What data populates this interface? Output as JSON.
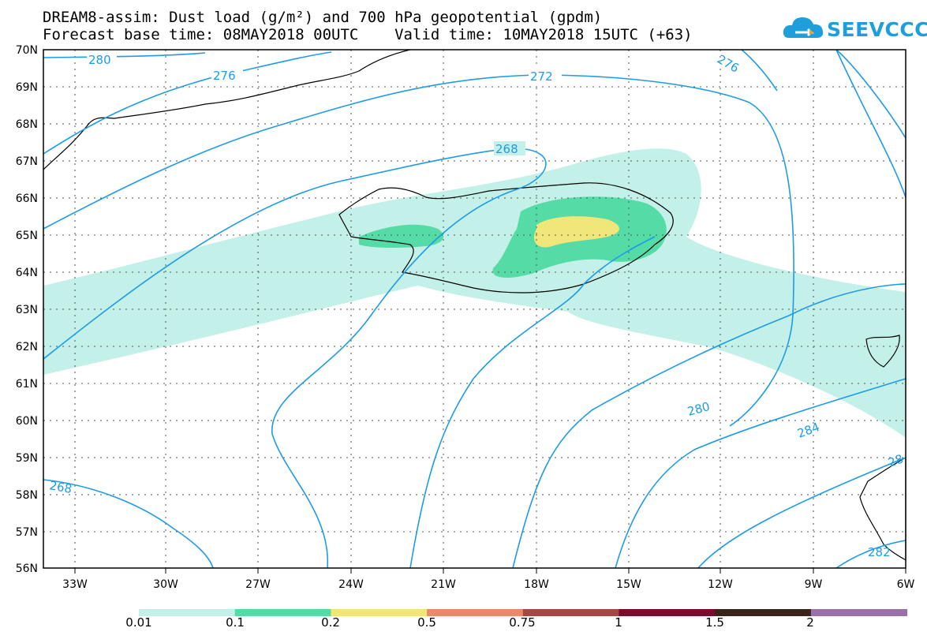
{
  "header": {
    "title_line1": "DREAM8-assim: Dust load (g/m²) and 700 hPa geopotential (gpdm)",
    "title_line2": "Forecast base time: 08MAY2018 00UTC    Valid time: 10MAY2018 15UTC (+63)"
  },
  "logo": {
    "text": "SEEVCCC",
    "icon": "cloud-icon"
  },
  "axes": {
    "lat_labels": [
      "70N",
      "69N",
      "68N",
      "67N",
      "66N",
      "65N",
      "64N",
      "63N",
      "62N",
      "61N",
      "60N",
      "59N",
      "58N",
      "57N",
      "56N"
    ],
    "lon_labels": [
      "33W",
      "30W",
      "27W",
      "24W",
      "21W",
      "18W",
      "15W",
      "12W",
      "9W",
      "6W"
    ]
  },
  "contours": {
    "labels": [
      "280",
      "276",
      "272",
      "268",
      "276",
      "268",
      "280",
      "284",
      "28",
      "282"
    ]
  },
  "colorbar": {
    "labels": [
      "0.01",
      "0.1",
      "0.2",
      "0.5",
      "0.75",
      "1",
      "1.5",
      "2"
    ],
    "colors": [
      "#c3f0e8",
      "#55dba5",
      "#f0e67a",
      "#e88a68",
      "#a04a44",
      "#7a0b2c",
      "#3a2418",
      "#9a70a8"
    ]
  },
  "colors": {
    "contour": "#1e9be8",
    "coast": "#000000",
    "dust_low": "#c3f0e8",
    "dust_mid": "#55dba5",
    "dust_high": "#f0e67a"
  }
}
